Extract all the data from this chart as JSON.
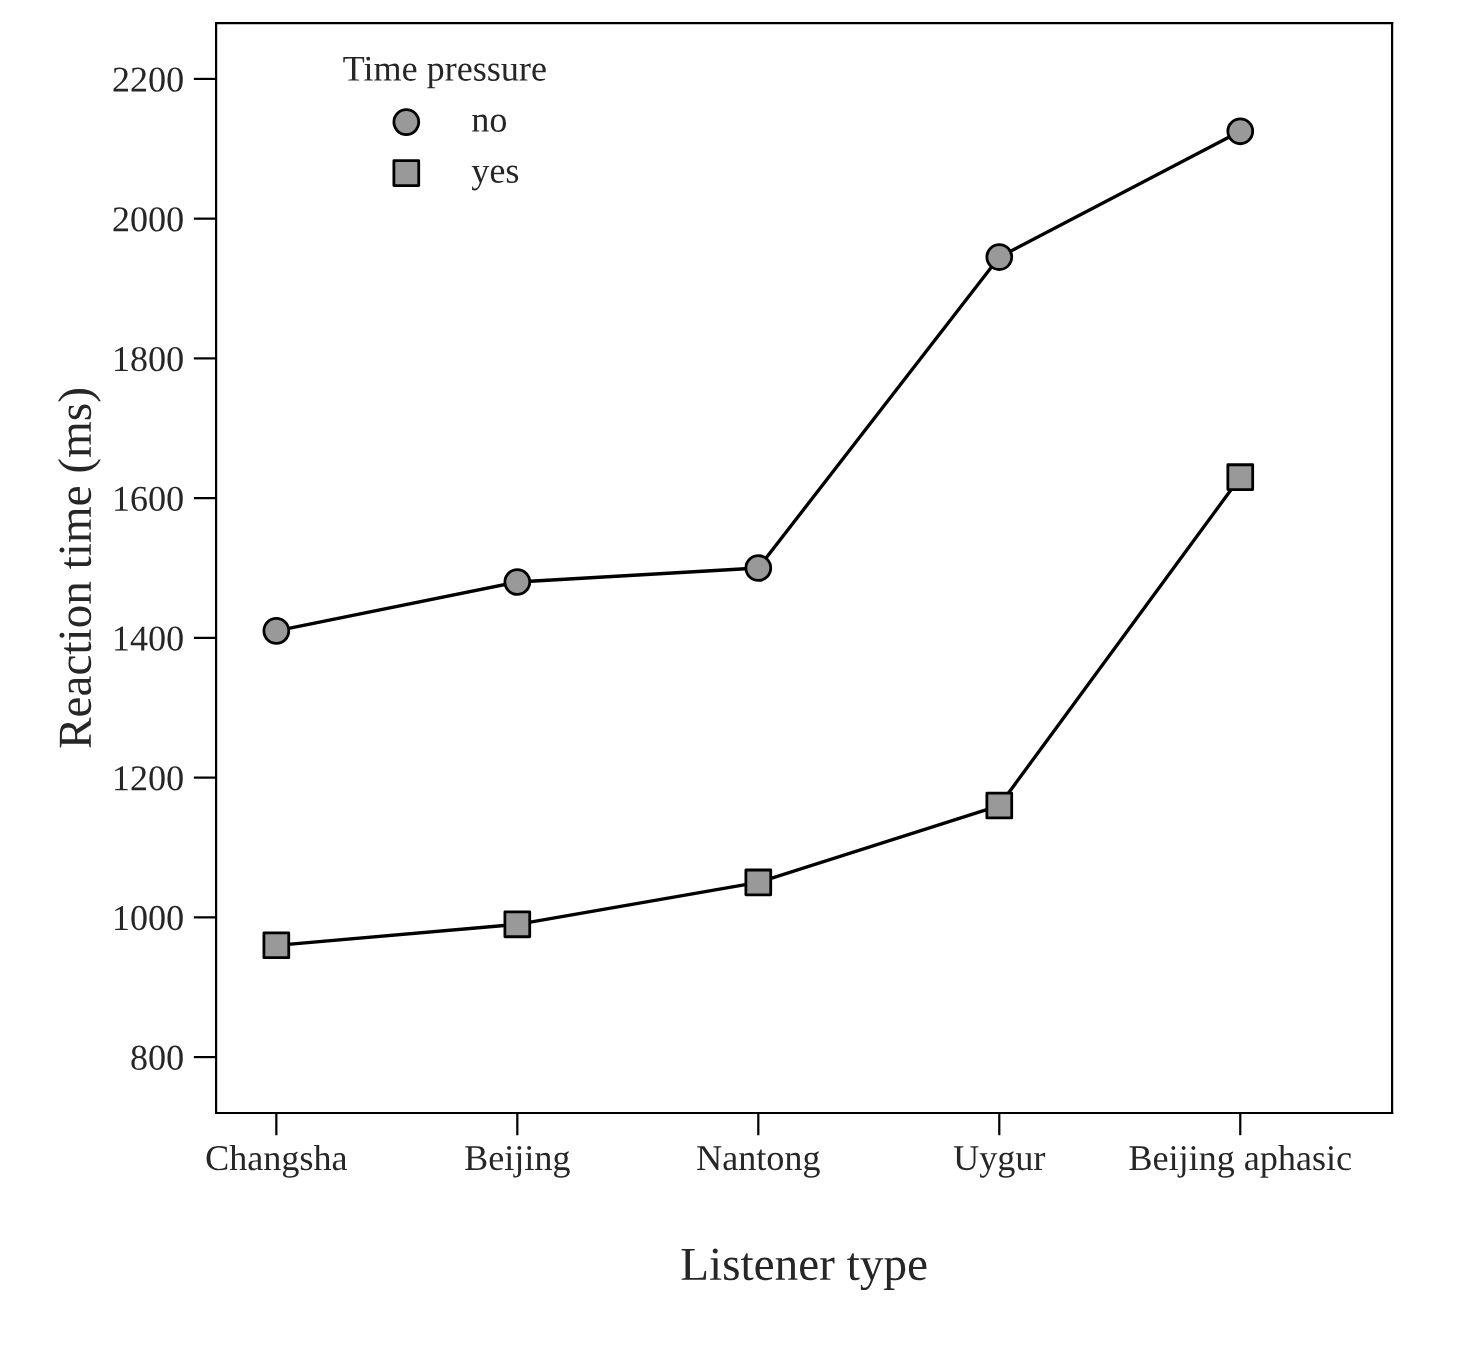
{
  "chart_data": {
    "type": "line",
    "xlabel": "Listener type",
    "ylabel": "Reaction time (ms)",
    "legend_title": "Time pressure",
    "legend": "top left",
    "categories": [
      "Changsha",
      "Beijing",
      "Nantong",
      "Uygur",
      "Beijing aphasic"
    ],
    "series": [
      {
        "name": "no",
        "color": "#999999",
        "marker": "circle",
        "values": [
          1410,
          1480,
          1500,
          1945,
          2125
        ]
      },
      {
        "name": "yes",
        "color": "#999999",
        "marker": "square",
        "values": [
          960,
          990,
          1050,
          1160,
          1630
        ]
      }
    ],
    "ylim": [
      720,
      2280
    ],
    "yticks": [
      800,
      1000,
      1200,
      1400,
      1600,
      1800,
      2000,
      2200
    ],
    "grid": false,
    "line_style": "solid"
  }
}
